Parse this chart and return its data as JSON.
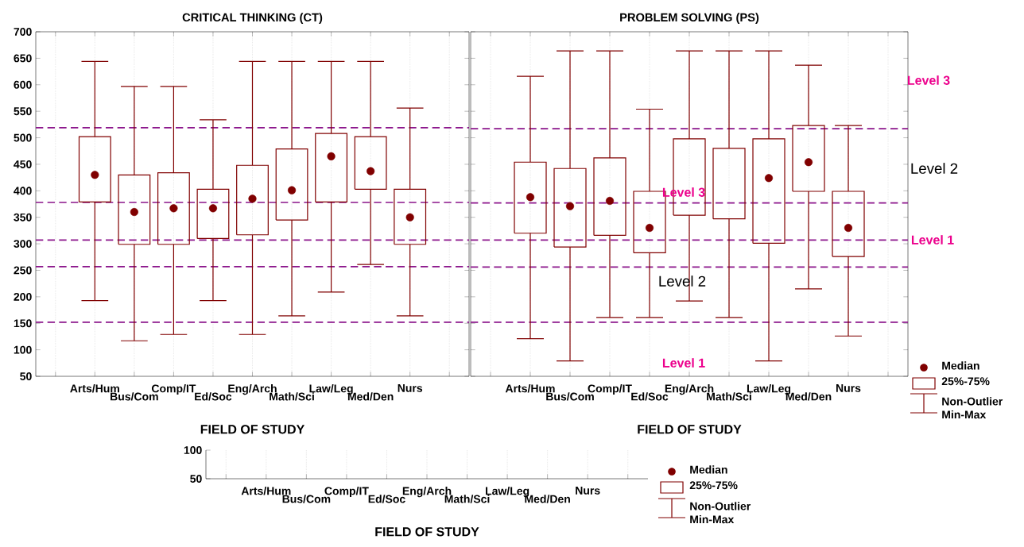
{
  "chart_data": [
    {
      "type": "box",
      "title": "CRITICAL THINKING (CT)",
      "xlabel": "FIELD OF STUDY",
      "color": "#800000",
      "grid": "x",
      "categories": [
        null,
        "Arts/Hum",
        "Bus/Com",
        "Comp/IT",
        "Ed/Soc",
        "Eng/Arch",
        "Math/Sci",
        "Law/Leg",
        "Med/Den",
        "Nurs",
        null
      ],
      "ylim": [
        50,
        700
      ],
      "yticks": [
        50,
        100,
        150,
        200,
        250,
        300,
        350,
        400,
        450,
        500,
        550,
        600,
        650,
        700
      ],
      "boxes": [
        null,
        {
          "low": 193,
          "q1": 379,
          "median": 430,
          "q3": 502,
          "high": 644
        },
        {
          "low": 117,
          "q1": 299,
          "median": 360,
          "q3": 430,
          "high": 597
        },
        {
          "low": 129,
          "q1": 299,
          "median": 367,
          "q3": 434,
          "high": 597
        },
        {
          "low": 193,
          "q1": 310,
          "median": 367,
          "q3": 403,
          "high": 534
        },
        {
          "low": 129,
          "q1": 317,
          "median": 385,
          "q3": 448,
          "high": 644
        },
        {
          "low": 164,
          "q1": 345,
          "median": 401,
          "q3": 479,
          "high": 644
        },
        {
          "low": 209,
          "q1": 379,
          "median": 465,
          "q3": 508,
          "high": 644
        },
        {
          "low": 261,
          "q1": 403,
          "median": 437,
          "q3": 502,
          "high": 644
        },
        {
          "low": 164,
          "q1": 299,
          "median": 350,
          "q3": 403,
          "high": 556
        },
        null
      ],
      "ref_lines": [
        {
          "axis": "y",
          "value": 519,
          "color": "#8b158b",
          "line_style": "dashed"
        },
        {
          "axis": "y",
          "value": 378,
          "color": "#8b158b",
          "line_style": "dashed"
        },
        {
          "axis": "y",
          "value": 307,
          "color": "#8b158b",
          "line_style": "dashed"
        },
        {
          "axis": "y",
          "value": 257,
          "color": "#8b158b",
          "line_style": "dashed"
        },
        {
          "axis": "y",
          "value": 152,
          "color": "#8b158b",
          "line_style": "dashed"
        }
      ]
    },
    {
      "type": "box",
      "title": "PROBLEM SOLVING (PS)",
      "xlabel": "FIELD OF STUDY",
      "color": "#800000",
      "grid": "x",
      "tick_labels": "x",
      "categories": [
        null,
        "Arts/Hum",
        "Bus/Com",
        "Comp/IT",
        "Ed/Soc",
        "Eng/Arch",
        "Math/Sci",
        "Law/Leg",
        "Med/Den",
        "Nurs",
        null
      ],
      "ylim": [
        50,
        700
      ],
      "yticks": [
        50,
        100,
        150,
        200,
        250,
        300,
        350,
        400,
        450,
        500,
        550,
        600,
        650,
        700
      ],
      "boxes": [
        null,
        {
          "low": 121,
          "q1": 320,
          "median": 388,
          "q3": 454,
          "high": 616
        },
        {
          "low": 79,
          "q1": 294,
          "median": 371,
          "q3": 442,
          "high": 664
        },
        {
          "low": 161,
          "q1": 316,
          "median": 381,
          "q3": 462,
          "high": 664
        },
        {
          "low": 161,
          "q1": 283,
          "median": 330,
          "q3": 399,
          "high": 554
        },
        {
          "low": 192,
          "q1": 354,
          "median": null,
          "q3": 498,
          "high": 664
        },
        {
          "low": 161,
          "q1": 347,
          "median": null,
          "q3": 480,
          "high": 664
        },
        {
          "low": 79,
          "q1": 301,
          "median": 424,
          "q3": 498,
          "high": 664
        },
        {
          "low": 215,
          "q1": 399,
          "median": 454,
          "q3": 523,
          "high": 637
        },
        {
          "low": 126,
          "q1": 276,
          "median": 330,
          "q3": 399,
          "high": 523
        },
        null
      ],
      "ref_lines": [
        {
          "axis": "y",
          "value": 517,
          "color": "#8b158b",
          "line_style": "dashed"
        },
        {
          "axis": "y",
          "value": 377,
          "color": "#8b158b",
          "line_style": "dashed"
        },
        {
          "axis": "y",
          "value": 307,
          "color": "#8b158b",
          "line_style": "dashed"
        },
        {
          "axis": "y",
          "value": 256,
          "color": "#8b158b",
          "line_style": "dashed"
        },
        {
          "axis": "y",
          "value": 152,
          "color": "#8b158b",
          "line_style": "dashed"
        }
      ],
      "annotations": [
        "Level 3",
        "Level 2",
        "Level 1",
        "Level 3",
        "Level 2",
        "Level 1",
        "Median",
        "25%-75%",
        "Non-Outlier Min-Max"
      ]
    },
    {
      "type": "box",
      "xlabel": "FIELD OF STUDY",
      "color": "#800000",
      "grid": "x",
      "categories": [
        null,
        "Arts/Hum",
        "Bus/Com",
        "Comp/IT",
        "Ed/Soc",
        "Eng/Arch",
        "Math/Sci",
        "Law/Leg",
        "Med/Den",
        "Nurs",
        null
      ],
      "ylim": [
        50,
        100
      ],
      "yticks": [
        50,
        100
      ],
      "annotations": [
        "Median",
        "25%-75%",
        "Non-Outlier Min-Max"
      ]
    }
  ]
}
